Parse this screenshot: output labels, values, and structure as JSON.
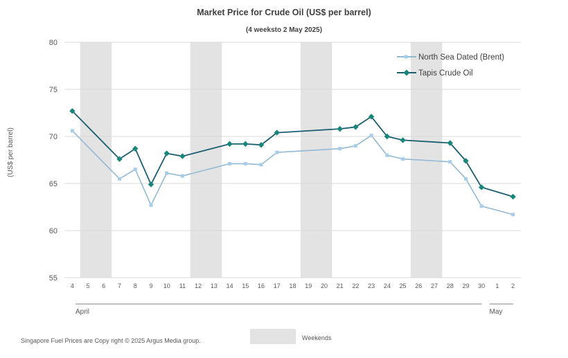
{
  "chart_data": {
    "type": "line",
    "title": "Market Price for Crude  Oil (US$ per barrel)",
    "subtitle": "(4 weeksto 2 May 2025)",
    "ylabel": "(US$ per barrel)",
    "xlabel": "",
    "ylim": [
      55,
      80
    ],
    "yticks": [
      "55",
      "60",
      "65",
      "70",
      "75",
      "80"
    ],
    "categories": [
      "4",
      "5",
      "6",
      "7",
      "8",
      "9",
      "10",
      "11",
      "12",
      "13",
      "14",
      "15",
      "16",
      "17",
      "18",
      "19",
      "20",
      "21",
      "22",
      "23",
      "24",
      "25",
      "26",
      "27",
      "28",
      "29",
      "30",
      "1",
      "2"
    ],
    "month_labels": [
      {
        "label": "April",
        "from": "4",
        "to": "30"
      },
      {
        "label": "May",
        "from": "1",
        "to": "2"
      }
    ],
    "weekends": [
      [
        "5",
        "6"
      ],
      [
        "12",
        "13"
      ],
      [
        "19",
        "20"
      ],
      [
        "26",
        "27"
      ]
    ],
    "series": [
      {
        "name": "North Sea Dated (Brent)",
        "color": "#92b9d3",
        "marker_color": "#a7cde8",
        "marker": "square",
        "values": [
          70.6,
          null,
          null,
          65.5,
          66.5,
          62.7,
          66.1,
          65.8,
          null,
          null,
          67.1,
          67.1,
          67.0,
          68.3,
          null,
          null,
          null,
          68.7,
          69.0,
          70.1,
          68.0,
          67.6,
          null,
          null,
          67.3,
          65.5,
          62.6,
          null,
          61.7
        ]
      },
      {
        "name": "Tapis Crude Oil",
        "color": "#1a5e72",
        "marker_color": "#18867a",
        "marker": "diamond",
        "values": [
          72.7,
          null,
          null,
          67.6,
          68.7,
          64.9,
          68.2,
          67.9,
          null,
          null,
          69.2,
          69.2,
          69.1,
          70.4,
          null,
          null,
          null,
          70.8,
          71.0,
          72.1,
          70.0,
          69.6,
          null,
          null,
          69.3,
          67.4,
          64.6,
          null,
          63.6
        ]
      }
    ],
    "legend": {
      "position": "top-right",
      "weekends_label": "Weekends"
    },
    "grid": true
  },
  "footer": {
    "copyright": "Singapore  Fuel Prices are  Copy right © 2025 Argus Media  group."
  },
  "colors": {
    "weekend_band": "#e3e3e3",
    "gridline": "#d9d9d9",
    "axis_text": "#595959"
  }
}
